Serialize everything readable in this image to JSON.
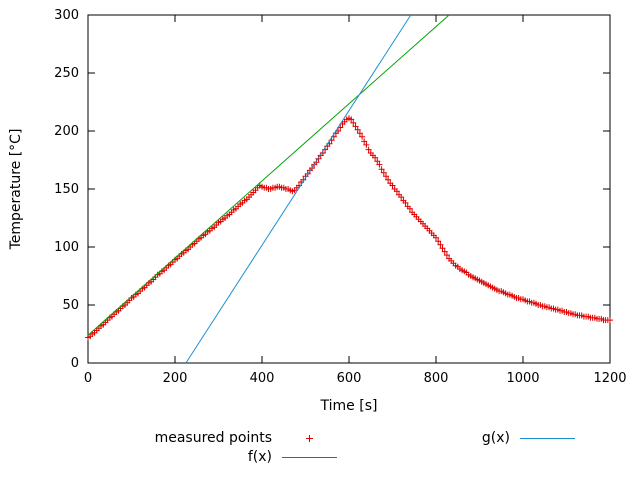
{
  "page": {
    "background": "#ffffff"
  },
  "chart_data": {
    "type": "scatter",
    "title": "",
    "xlabel": "Time [s]",
    "ylabel": "Temperature [°C]",
    "xlim": [
      0,
      1200
    ],
    "ylim": [
      0,
      300
    ],
    "x_ticks": [
      0,
      200,
      400,
      600,
      800,
      1000,
      1200
    ],
    "y_ticks": [
      0,
      50,
      100,
      150,
      200,
      250,
      300
    ],
    "grid": false,
    "border": true,
    "legend_position": "below-plot",
    "series": [
      {
        "name": "measured points",
        "type": "points",
        "marker": "plus",
        "color": "#e00000",
        "points": [
          [
            0,
            22
          ],
          [
            5,
            23
          ],
          [
            10,
            25
          ],
          [
            15,
            26
          ],
          [
            20,
            28
          ],
          [
            25,
            30
          ],
          [
            30,
            32
          ],
          [
            35,
            33
          ],
          [
            40,
            35
          ],
          [
            45,
            37
          ],
          [
            50,
            39
          ],
          [
            55,
            40
          ],
          [
            60,
            42
          ],
          [
            65,
            44
          ],
          [
            70,
            45
          ],
          [
            75,
            47
          ],
          [
            80,
            49
          ],
          [
            85,
            50
          ],
          [
            90,
            52
          ],
          [
            95,
            54
          ],
          [
            100,
            56
          ],
          [
            105,
            57
          ],
          [
            110,
            59
          ],
          [
            115,
            60
          ],
          [
            120,
            62
          ],
          [
            125,
            64
          ],
          [
            130,
            65
          ],
          [
            135,
            67
          ],
          [
            140,
            69
          ],
          [
            145,
            70
          ],
          [
            150,
            72
          ],
          [
            155,
            74
          ],
          [
            160,
            76
          ],
          [
            165,
            77
          ],
          [
            170,
            79
          ],
          [
            175,
            80
          ],
          [
            180,
            82
          ],
          [
            185,
            84
          ],
          [
            190,
            85
          ],
          [
            195,
            87
          ],
          [
            200,
            89
          ],
          [
            205,
            90
          ],
          [
            210,
            92
          ],
          [
            215,
            94
          ],
          [
            220,
            95
          ],
          [
            225,
            97
          ],
          [
            230,
            98
          ],
          [
            235,
            100
          ],
          [
            240,
            102
          ],
          [
            245,
            103
          ],
          [
            250,
            105
          ],
          [
            255,
            107
          ],
          [
            260,
            108
          ],
          [
            265,
            110
          ],
          [
            270,
            111
          ],
          [
            275,
            113
          ],
          [
            280,
            114
          ],
          [
            285,
            116
          ],
          [
            290,
            117
          ],
          [
            295,
            119
          ],
          [
            300,
            121
          ],
          [
            305,
            122
          ],
          [
            310,
            124
          ],
          [
            315,
            125
          ],
          [
            320,
            127
          ],
          [
            325,
            128
          ],
          [
            330,
            130
          ],
          [
            335,
            132
          ],
          [
            340,
            133
          ],
          [
            345,
            135
          ],
          [
            350,
            137
          ],
          [
            355,
            138
          ],
          [
            360,
            140
          ],
          [
            365,
            141
          ],
          [
            370,
            143
          ],
          [
            375,
            145
          ],
          [
            380,
            147
          ],
          [
            385,
            149
          ],
          [
            390,
            151
          ],
          [
            395,
            153
          ],
          [
            400,
            152
          ],
          [
            405,
            151
          ],
          [
            410,
            151
          ],
          [
            415,
            150
          ],
          [
            420,
            150
          ],
          [
            425,
            151
          ],
          [
            430,
            151
          ],
          [
            435,
            152
          ],
          [
            440,
            152
          ],
          [
            445,
            151
          ],
          [
            450,
            151
          ],
          [
            455,
            150
          ],
          [
            460,
            150
          ],
          [
            465,
            149
          ],
          [
            470,
            148
          ],
          [
            475,
            149
          ],
          [
            480,
            151
          ],
          [
            485,
            153
          ],
          [
            490,
            156
          ],
          [
            495,
            158
          ],
          [
            500,
            161
          ],
          [
            505,
            163
          ],
          [
            510,
            166
          ],
          [
            515,
            168
          ],
          [
            520,
            171
          ],
          [
            525,
            173
          ],
          [
            530,
            176
          ],
          [
            535,
            179
          ],
          [
            540,
            181
          ],
          [
            545,
            184
          ],
          [
            550,
            187
          ],
          [
            555,
            189
          ],
          [
            560,
            192
          ],
          [
            565,
            195
          ],
          [
            570,
            198
          ],
          [
            575,
            200
          ],
          [
            580,
            203
          ],
          [
            585,
            206
          ],
          [
            590,
            208
          ],
          [
            595,
            210
          ],
          [
            600,
            211
          ],
          [
            605,
            210
          ],
          [
            610,
            207
          ],
          [
            615,
            204
          ],
          [
            620,
            201
          ],
          [
            625,
            198
          ],
          [
            630,
            195
          ],
          [
            635,
            191
          ],
          [
            640,
            188
          ],
          [
            645,
            184
          ],
          [
            650,
            181
          ],
          [
            655,
            179
          ],
          [
            660,
            177
          ],
          [
            665,
            174
          ],
          [
            670,
            171
          ],
          [
            675,
            167
          ],
          [
            680,
            164
          ],
          [
            685,
            161
          ],
          [
            690,
            158
          ],
          [
            695,
            155
          ],
          [
            700,
            153
          ],
          [
            705,
            150
          ],
          [
            710,
            148
          ],
          [
            715,
            145
          ],
          [
            720,
            143
          ],
          [
            725,
            140
          ],
          [
            730,
            138
          ],
          [
            735,
            135
          ],
          [
            740,
            133
          ],
          [
            745,
            130
          ],
          [
            750,
            128
          ],
          [
            755,
            126
          ],
          [
            760,
            124
          ],
          [
            765,
            122
          ],
          [
            770,
            120
          ],
          [
            775,
            118
          ],
          [
            780,
            116
          ],
          [
            785,
            114
          ],
          [
            790,
            112
          ],
          [
            795,
            110
          ],
          [
            800,
            108
          ],
          [
            805,
            105
          ],
          [
            810,
            102
          ],
          [
            815,
            99
          ],
          [
            820,
            96
          ],
          [
            825,
            93
          ],
          [
            830,
            90
          ],
          [
            835,
            88
          ],
          [
            840,
            86
          ],
          [
            845,
            84
          ],
          [
            850,
            83
          ],
          [
            855,
            81
          ],
          [
            860,
            80
          ],
          [
            865,
            79
          ],
          [
            870,
            78
          ],
          [
            875,
            76
          ],
          [
            880,
            75
          ],
          [
            885,
            74
          ],
          [
            890,
            73
          ],
          [
            895,
            72
          ],
          [
            900,
            71
          ],
          [
            905,
            70
          ],
          [
            910,
            69
          ],
          [
            915,
            68
          ],
          [
            920,
            67
          ],
          [
            925,
            66
          ],
          [
            930,
            65
          ],
          [
            935,
            64
          ],
          [
            940,
            63
          ],
          [
            945,
            62
          ],
          [
            950,
            62
          ],
          [
            955,
            61
          ],
          [
            960,
            60
          ],
          [
            965,
            59
          ],
          [
            970,
            59
          ],
          [
            975,
            58
          ],
          [
            980,
            57
          ],
          [
            985,
            56
          ],
          [
            990,
            56
          ],
          [
            995,
            55
          ],
          [
            1000,
            55
          ],
          [
            1005,
            54
          ],
          [
            1010,
            53
          ],
          [
            1015,
            53
          ],
          [
            1020,
            52
          ],
          [
            1025,
            52
          ],
          [
            1030,
            51
          ],
          [
            1035,
            50
          ],
          [
            1040,
            50
          ],
          [
            1045,
            49
          ],
          [
            1050,
            49
          ],
          [
            1055,
            48
          ],
          [
            1060,
            48
          ],
          [
            1065,
            47
          ],
          [
            1070,
            47
          ],
          [
            1075,
            46
          ],
          [
            1080,
            46
          ],
          [
            1085,
            45
          ],
          [
            1090,
            45
          ],
          [
            1095,
            44
          ],
          [
            1100,
            44
          ],
          [
            1105,
            43
          ],
          [
            1110,
            43
          ],
          [
            1115,
            42
          ],
          [
            1120,
            42
          ],
          [
            1125,
            41
          ],
          [
            1130,
            41
          ],
          [
            1135,
            41
          ],
          [
            1140,
            40
          ],
          [
            1145,
            40
          ],
          [
            1150,
            40
          ],
          [
            1155,
            39
          ],
          [
            1160,
            39
          ],
          [
            1165,
            39
          ],
          [
            1170,
            38
          ],
          [
            1175,
            38
          ],
          [
            1180,
            38
          ],
          [
            1185,
            37
          ],
          [
            1190,
            37
          ],
          [
            1195,
            37
          ],
          [
            1200,
            37
          ]
        ]
      },
      {
        "name": "f(x)",
        "type": "line",
        "color": "#00a000",
        "points": [
          [
            0,
            24
          ],
          [
            830,
            300
          ]
        ]
      },
      {
        "name": "g(x)",
        "type": "line",
        "color": "#1e90d0",
        "points": [
          [
            225,
            0
          ],
          [
            742,
            300
          ]
        ]
      }
    ]
  }
}
